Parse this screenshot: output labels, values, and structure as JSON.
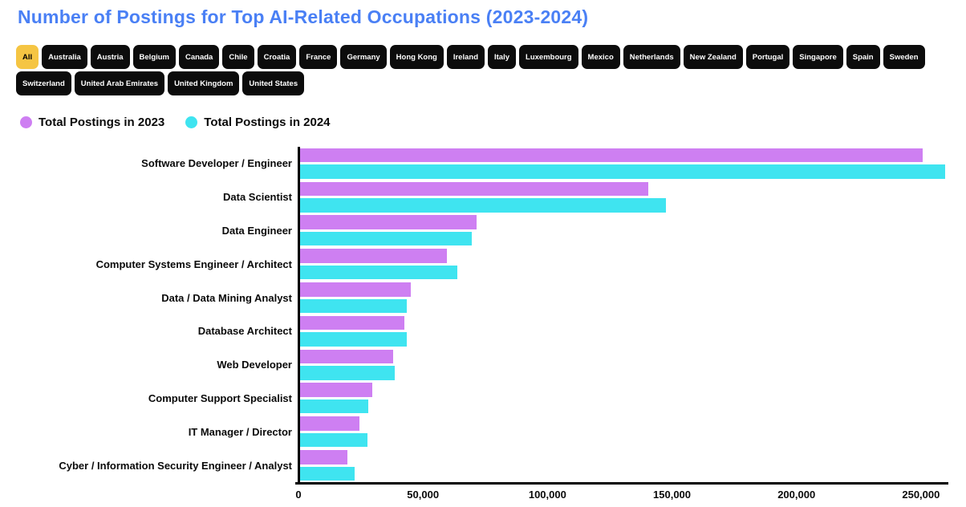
{
  "title": "Number of Postings for Top AI-Related Occupations (2023-2024)",
  "colors": {
    "title": "#4a80f5",
    "chip_bg": "#0c0c0c",
    "chip_selected_bg": "#f5c543",
    "bar_2023": "#ce7ff2",
    "bar_2024": "#3fe4f0"
  },
  "filters": {
    "selected": "All",
    "items": [
      "All",
      "Australia",
      "Austria",
      "Belgium",
      "Canada",
      "Chile",
      "Croatia",
      "France",
      "Germany",
      "Hong Kong",
      "Ireland",
      "Italy",
      "Luxembourg",
      "Mexico",
      "Netherlands",
      "New Zealand",
      "Portugal",
      "Singapore",
      "Spain",
      "Sweden",
      "Switzerland",
      "United Arab Emirates",
      "United Kingdom",
      "United States"
    ]
  },
  "legend": {
    "items": [
      {
        "label": "Total Postings in 2023",
        "color": "#ce7ff2"
      },
      {
        "label": "Total Postings in 2024",
        "color": "#3fe4f0"
      }
    ]
  },
  "chart_data": {
    "type": "bar",
    "orientation": "horizontal",
    "title": "Number of Postings for Top AI-Related Occupations (2023-2024)",
    "categories": [
      "Software Developer / Engineer",
      "Data Scientist",
      "Data Engineer",
      "Computer Systems Engineer / Architect",
      "Data / Data Mining Analyst",
      "Database Architect",
      "Web Developer",
      "Computer Support Specialist",
      "IT Manager / Director",
      "Cyber / Information Security Engineer / Analyst"
    ],
    "series": [
      {
        "name": "Total Postings in 2023",
        "color": "#ce7ff2",
        "values": [
          250000,
          140000,
          71000,
          59000,
          44500,
          42000,
          37500,
          29000,
          24000,
          19000
        ]
      },
      {
        "name": "Total Postings in 2024",
        "color": "#3fe4f0",
        "values": [
          259000,
          147000,
          69000,
          63000,
          43000,
          43000,
          38000,
          27500,
          27000,
          22000
        ]
      }
    ],
    "xlabel": "",
    "ylabel": "",
    "xlim": [
      0,
      261000
    ],
    "x_ticks": [
      0,
      50000,
      100000,
      150000,
      200000,
      250000
    ],
    "x_tick_labels": [
      "0",
      "50,000",
      "100,000",
      "150,000",
      "200,000",
      "250,000"
    ],
    "grid": false,
    "legend_position": "top-left"
  }
}
